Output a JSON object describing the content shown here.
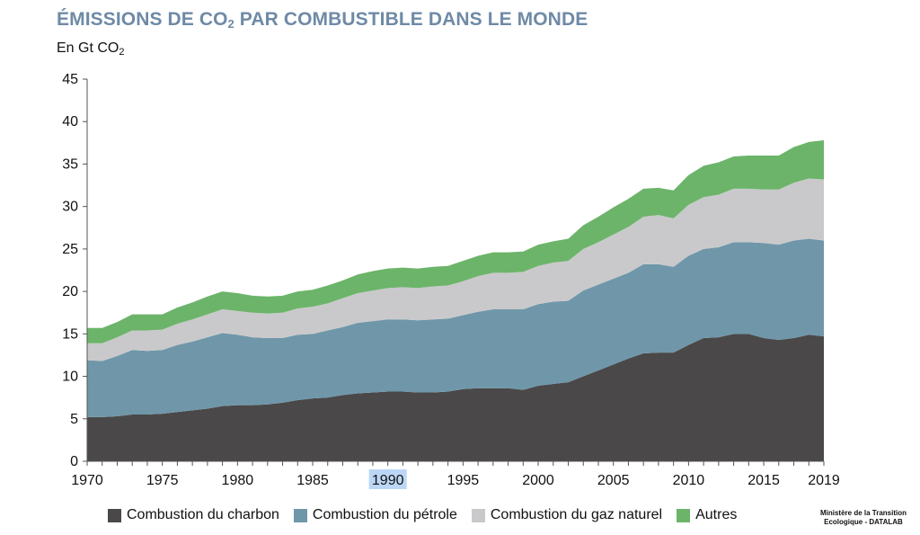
{
  "header": {
    "title_main": "ÉMISSIONS DE CO",
    "title_sub": "2",
    "title_rest": " PAR COMBUSTIBLE DANS LE MONDE",
    "unit_main": "En Gt CO",
    "unit_sub": "2"
  },
  "source": {
    "line1": "Ministère de la Transition",
    "line2": "Ecologique - DATALAB"
  },
  "chart_data": {
    "type": "area",
    "stacked": true,
    "x": [
      1970,
      1971,
      1972,
      1973,
      1974,
      1975,
      1976,
      1977,
      1978,
      1979,
      1980,
      1981,
      1982,
      1983,
      1984,
      1985,
      1986,
      1987,
      1988,
      1989,
      1990,
      1991,
      1992,
      1993,
      1994,
      1995,
      1996,
      1997,
      1998,
      1999,
      2000,
      2001,
      2002,
      2003,
      2004,
      2005,
      2006,
      2007,
      2008,
      2009,
      2010,
      2011,
      2012,
      2013,
      2014,
      2015,
      2016,
      2017,
      2018,
      2019
    ],
    "xticks": [
      1970,
      1975,
      1980,
      1985,
      1990,
      1995,
      2000,
      2005,
      2010,
      2015,
      2019
    ],
    "highlighted_xtick": 1990,
    "yticks": [
      0,
      5,
      10,
      15,
      20,
      25,
      30,
      35,
      40,
      45
    ],
    "ylim": [
      0,
      45
    ],
    "xlim": [
      1970,
      2019
    ],
    "grid": false,
    "legend_position": "bottom",
    "series": [
      {
        "name": "Combustion du charbon",
        "color": "#4a4849",
        "values": [
          5.2,
          5.2,
          5.3,
          5.5,
          5.5,
          5.6,
          5.8,
          6.0,
          6.2,
          6.5,
          6.6,
          6.6,
          6.7,
          6.9,
          7.2,
          7.4,
          7.5,
          7.8,
          8.0,
          8.1,
          8.2,
          8.2,
          8.1,
          8.1,
          8.2,
          8.5,
          8.6,
          8.6,
          8.6,
          8.4,
          8.9,
          9.1,
          9.3,
          10.0,
          10.7,
          11.4,
          12.1,
          12.7,
          12.8,
          12.8,
          13.7,
          14.5,
          14.6,
          15.0,
          15.0,
          14.5,
          14.3,
          14.5,
          14.9,
          14.7
        ]
      },
      {
        "name": "Combustion du pétrole",
        "color": "#6f97a9",
        "values": [
          6.7,
          6.6,
          7.1,
          7.6,
          7.5,
          7.5,
          7.9,
          8.1,
          8.4,
          8.6,
          8.3,
          8.0,
          7.8,
          7.6,
          7.7,
          7.6,
          7.9,
          8.0,
          8.3,
          8.4,
          8.5,
          8.5,
          8.5,
          8.6,
          8.6,
          8.7,
          9.0,
          9.3,
          9.3,
          9.5,
          9.6,
          9.7,
          9.6,
          10.1,
          10.1,
          10.1,
          10.1,
          10.5,
          10.4,
          10.1,
          10.5,
          10.5,
          10.6,
          10.8,
          10.8,
          11.2,
          11.2,
          11.5,
          11.3,
          11.3
        ]
      },
      {
        "name": "Combustion du gaz naturel",
        "color": "#c9c9cb",
        "values": [
          2.0,
          2.1,
          2.2,
          2.3,
          2.4,
          2.4,
          2.5,
          2.6,
          2.7,
          2.8,
          2.8,
          2.9,
          2.9,
          3.0,
          3.1,
          3.2,
          3.2,
          3.4,
          3.5,
          3.6,
          3.7,
          3.8,
          3.8,
          3.9,
          3.9,
          4.0,
          4.2,
          4.3,
          4.3,
          4.4,
          4.5,
          4.6,
          4.7,
          4.9,
          5.0,
          5.2,
          5.4,
          5.6,
          5.8,
          5.7,
          6.0,
          6.1,
          6.2,
          6.3,
          6.3,
          6.3,
          6.5,
          6.8,
          7.1,
          7.2
        ]
      },
      {
        "name": "Autres",
        "color": "#6cb46a",
        "values": [
          1.8,
          1.8,
          1.8,
          1.9,
          1.9,
          1.8,
          1.9,
          2.0,
          2.1,
          2.1,
          2.1,
          2.0,
          2.0,
          2.0,
          2.0,
          2.0,
          2.1,
          2.1,
          2.2,
          2.3,
          2.3,
          2.3,
          2.3,
          2.3,
          2.3,
          2.4,
          2.4,
          2.4,
          2.4,
          2.4,
          2.5,
          2.5,
          2.6,
          2.8,
          3.0,
          3.2,
          3.3,
          3.3,
          3.2,
          3.3,
          3.5,
          3.7,
          3.8,
          3.8,
          3.9,
          4.0,
          4.0,
          4.2,
          4.3,
          4.6
        ]
      }
    ]
  }
}
